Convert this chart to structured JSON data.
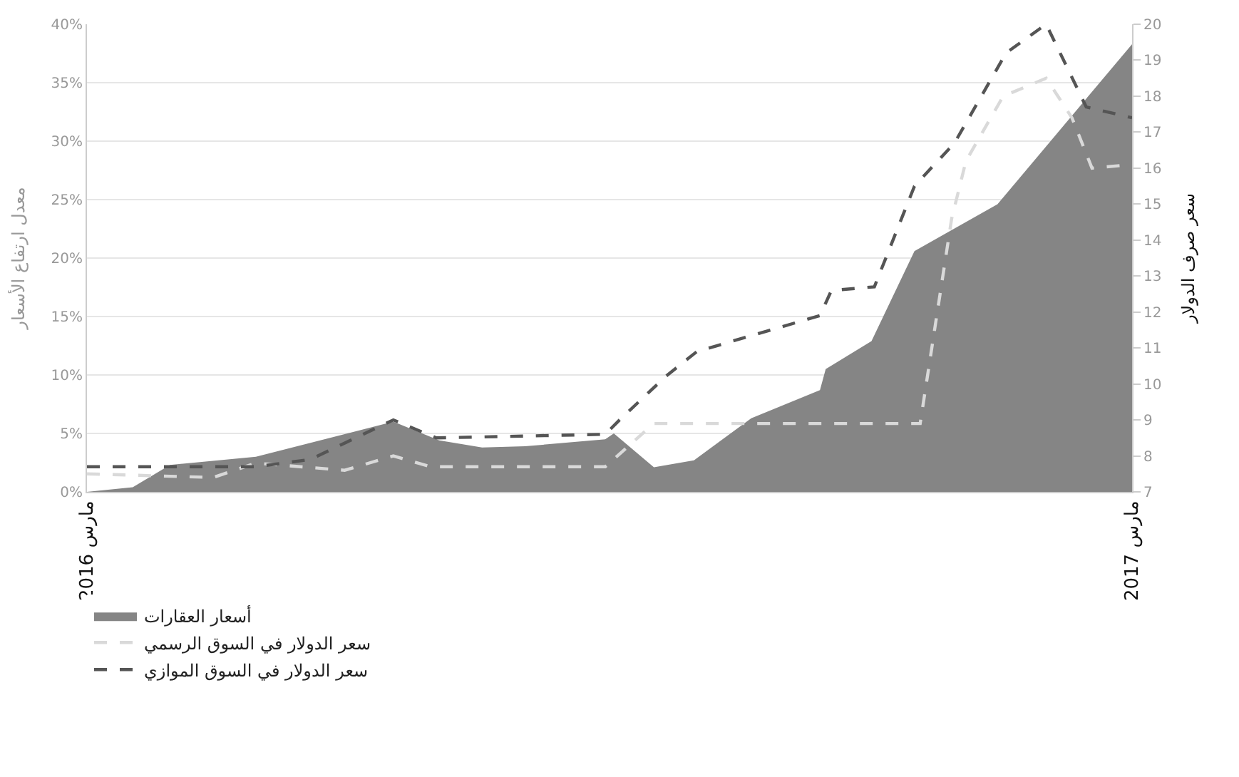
{
  "chart_data": {
    "type": "area",
    "ylabel": "معدل ارتفاع الأسعار",
    "y2label": "سعر صرف الدولار",
    "xlim": [
      "2016-03-01",
      "2017-03-01"
    ],
    "xticks": [
      {
        "value": "2016-03-01",
        "label": "مارس 2016"
      },
      {
        "value": "2017-03-01",
        "label": "مارس 2017"
      }
    ],
    "ylim": [
      0,
      40
    ],
    "yticks": [
      {
        "value": 0,
        "label": "0%"
      },
      {
        "value": 5,
        "label": "5%"
      },
      {
        "value": 10,
        "label": "10%"
      },
      {
        "value": 15,
        "label": "15%"
      },
      {
        "value": 20,
        "label": "20%"
      },
      {
        "value": 25,
        "label": "25%"
      },
      {
        "value": 30,
        "label": "30%"
      },
      {
        "value": 35,
        "label": "35%"
      },
      {
        "value": 40,
        "label": "40%"
      }
    ],
    "y2lim": [
      7,
      20
    ],
    "y2ticks": [
      7,
      8,
      9,
      10,
      11,
      12,
      13,
      14,
      15,
      16,
      17,
      18,
      19,
      20
    ],
    "grid": "y",
    "legend": "bottom",
    "series": [
      {
        "name": "أسعار العقارات",
        "color": "#858585",
        "x": [
          "2016-03-01",
          "2016-03-17",
          "2016-03-30",
          "2016-04-29",
          "2016-06-16",
          "2016-07-02",
          "2016-07-17",
          "2016-08-01",
          "2016-08-29",
          "2016-09-01",
          "2016-09-15",
          "2016-09-29",
          "2016-10-19",
          "2016-11-12",
          "2016-11-14",
          "2016-11-30",
          "2016-12-15",
          "2016-12-28",
          "2017-01-13",
          "2017-03-01"
        ],
        "values": [
          0,
          0.4,
          2.3,
          3,
          6,
          4.4,
          3.8,
          3.9,
          4.5,
          5,
          2.1,
          2.7,
          6.3,
          8.7,
          10.5,
          12.9,
          20.6,
          22.4,
          24.6,
          38.3
        ]
      },
      {
        "name": "سعر الدولار في السوق الرسمي",
        "type": "line",
        "axis": "y2",
        "line_style": "dashed",
        "color": "#d9d9d9",
        "x": [
          "2016-03-01",
          "2016-04-14",
          "2016-04-29",
          "2016-05-30",
          "2016-06-16",
          "2016-06-29",
          "2016-08-29",
          "2016-09-15",
          "2016-12-17",
          "2016-12-28",
          "2017-01-02",
          "2017-01-15",
          "2017-01-30",
          "2017-02-08",
          "2017-02-15",
          "2017-03-01"
        ],
        "values": [
          7.5,
          7.4,
          7.8,
          7.6,
          8,
          7.7,
          7.7,
          8.9,
          8.9,
          14.6,
          16.2,
          18,
          18.5,
          17.4,
          16,
          16.1
        ]
      },
      {
        "name": "سعر الدولار في السوق الموازي",
        "type": "line",
        "axis": "y2",
        "line_style": "dashed",
        "color": "#555555",
        "x": [
          "2016-03-01",
          "2016-04-29",
          "2016-05-18",
          "2016-06-16",
          "2016-07-01",
          "2016-08-29",
          "2016-09-03",
          "2016-09-19",
          "2016-09-30",
          "2016-11-12",
          "2016-11-16",
          "2016-12-01",
          "2016-12-15",
          "2016-12-29",
          "2017-01-16",
          "2017-01-30",
          "2017-02-13",
          "2017-03-01"
        ],
        "values": [
          7.7,
          7.7,
          7.9,
          9,
          8.5,
          8.6,
          9,
          10.2,
          10.9,
          11.9,
          12.6,
          12.7,
          15.5,
          16.7,
          19.2,
          20,
          17.7,
          17.4
        ]
      }
    ]
  }
}
